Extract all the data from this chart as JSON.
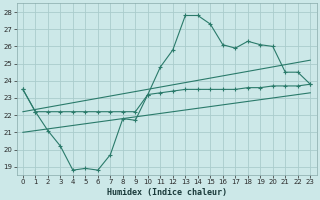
{
  "title": "",
  "xlabel": "Humidex (Indice chaleur)",
  "background_color": "#cce8e8",
  "grid_color": "#aacccc",
  "line_color": "#2a7a6a",
  "xlim": [
    -0.5,
    23.5
  ],
  "ylim": [
    18.5,
    28.5
  ],
  "yticks": [
    19,
    20,
    21,
    22,
    23,
    24,
    25,
    26,
    27,
    28
  ],
  "xticks": [
    0,
    1,
    2,
    3,
    4,
    5,
    6,
    7,
    8,
    9,
    10,
    11,
    12,
    13,
    14,
    15,
    16,
    17,
    18,
    19,
    20,
    21,
    22,
    23
  ],
  "curve1_x": [
    0,
    1,
    2,
    3,
    4,
    5,
    6,
    7,
    8,
    9,
    10,
    11,
    12,
    13,
    14,
    15,
    16,
    17,
    18,
    19,
    20,
    21,
    22,
    23
  ],
  "curve1_y": [
    23.5,
    22.2,
    21.1,
    20.2,
    18.8,
    18.9,
    18.8,
    19.7,
    21.8,
    21.7,
    23.2,
    24.8,
    25.8,
    27.8,
    27.8,
    27.3,
    26.1,
    25.9,
    26.3,
    26.1,
    26.0,
    24.5,
    24.5,
    23.8
  ],
  "curve2_x": [
    0,
    1,
    2,
    3,
    4,
    5,
    6,
    7,
    8,
    9,
    10,
    11,
    12,
    13,
    14,
    15,
    16,
    17,
    18,
    19,
    20,
    21,
    22,
    23
  ],
  "curve2_y": [
    23.5,
    22.2,
    22.2,
    22.2,
    22.2,
    22.2,
    22.2,
    22.2,
    22.2,
    22.2,
    23.2,
    23.3,
    23.4,
    23.5,
    23.5,
    23.5,
    23.5,
    23.5,
    23.6,
    23.6,
    23.7,
    23.7,
    23.7,
    23.8
  ],
  "line1_x": [
    0,
    23
  ],
  "line1_y": [
    21.0,
    23.3
  ],
  "line2_x": [
    0,
    23
  ],
  "line2_y": [
    22.2,
    25.2
  ]
}
